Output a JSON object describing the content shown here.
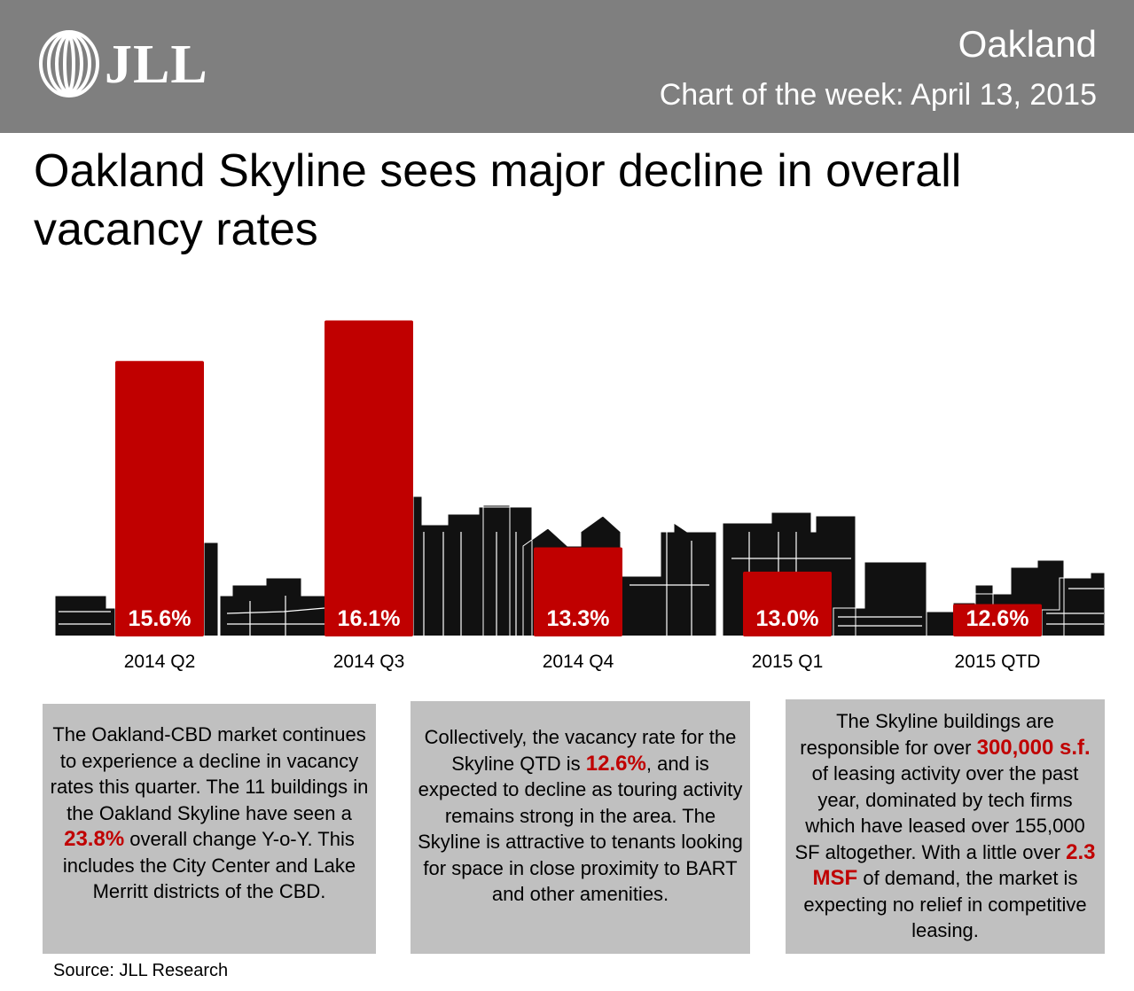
{
  "header": {
    "logo_text": "JLL",
    "region": "Oakland",
    "subtitle": "Chart of the week: April 13, 2015",
    "colors": {
      "header_bg": "#7f7f7f",
      "accent": "#c00000"
    }
  },
  "headline": "Oakland Skyline sees major decline in overall vacancy rates",
  "chart_data": {
    "type": "bar",
    "categories": [
      "2014 Q2",
      "2014 Q3",
      "2014 Q4",
      "2015 Q1",
      "2015 QTD"
    ],
    "values": [
      15.6,
      16.1,
      13.3,
      13.0,
      12.6
    ],
    "value_labels": [
      "15.6%",
      "16.1%",
      "13.3%",
      "13.0%",
      "12.6%"
    ],
    "title": "",
    "xlabel": "",
    "ylabel": "",
    "ylim": [
      12.2,
      16.5
    ],
    "grid": false,
    "bar_color": "#c00000",
    "background": "city skyline silhouette"
  },
  "boxes": [
    {
      "p1": "The Oakland-CBD market continues to experience a decline in vacancy rates this quarter. The 11 buildings in the Oakland Skyline have seen a ",
      "h1": "23.8%",
      "p2": " overall change Y-o-Y. This includes the City Center and Lake Merritt districts of the CBD."
    },
    {
      "p1": "Collectively, the vacancy rate for the Skyline QTD is ",
      "h1": "12.6%",
      "p2": ", and is expected to decline as touring activity remains strong in the area. The Skyline is attractive to tenants looking for space in close proximity to BART and other amenities."
    },
    {
      "p1": "The Skyline buildings are responsible for over ",
      "h1": "300,000 s.f.",
      "p2": " of leasing activity over the past year, dominated by tech firms which have leased over 155,000 SF altogether. With a little over ",
      "h2": "2.3 MSF",
      "p3": " of demand, the market is expecting no relief in competitive leasing."
    }
  ],
  "source": "Source: JLL Research"
}
